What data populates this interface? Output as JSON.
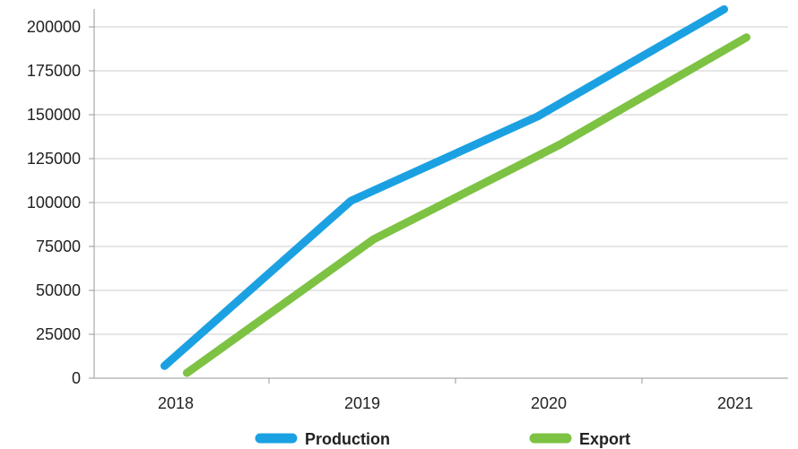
{
  "chart_data": {
    "type": "line",
    "title": "",
    "xlabel": "",
    "ylabel": "",
    "categories": [
      "2018",
      "2019",
      "2020",
      "2021"
    ],
    "y_ticks": [
      "0",
      "25000",
      "50000",
      "75000",
      "100000",
      "125000",
      "150000",
      "175000",
      "200000"
    ],
    "ylim": [
      0,
      210000
    ],
    "grid": "horizontal",
    "legend_position": "bottom",
    "series": [
      {
        "name": "Production",
        "color": "#1BA1E2",
        "x_offset": -0.06,
        "values": [
          7000,
          101000,
          149000,
          210000
        ]
      },
      {
        "name": "Export",
        "color": "#7DC243",
        "x_offset": 0.06,
        "values": [
          3000,
          79000,
          133000,
          194000
        ]
      }
    ]
  }
}
